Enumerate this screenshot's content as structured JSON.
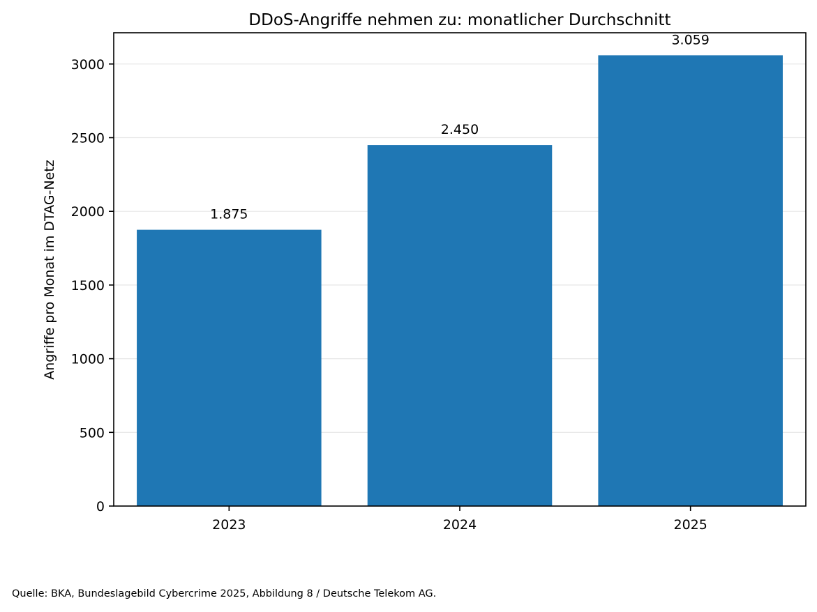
{
  "chart_data": {
    "type": "bar",
    "title": "DDoS-Angriffe nehmen zu: monatlicher Durchschnitt",
    "xlabel": "",
    "ylabel": "Angriffe pro Monat im DTAG-Netz",
    "categories": [
      "2023",
      "2024",
      "2025"
    ],
    "values": [
      1875,
      2450,
      3059
    ],
    "value_labels": [
      "1.875",
      "2.450",
      "3.059"
    ],
    "ylim": [
      0,
      3212
    ],
    "yticks": [
      0,
      500,
      1000,
      1500,
      2000,
      2500,
      3000
    ],
    "ytick_labels": [
      "0",
      "500",
      "1000",
      "1500",
      "2000",
      "2500",
      "3000"
    ],
    "grid": "y-axis, horizontal",
    "legend": "none",
    "colors": {
      "bar": "#1f77b4",
      "grid": "#e6e6e6",
      "axis": "#000000"
    }
  },
  "caption": "Quelle: BKA, Bundeslagebild Cybercrime 2025, Abbildung 8 / Deutsche Telekom AG."
}
